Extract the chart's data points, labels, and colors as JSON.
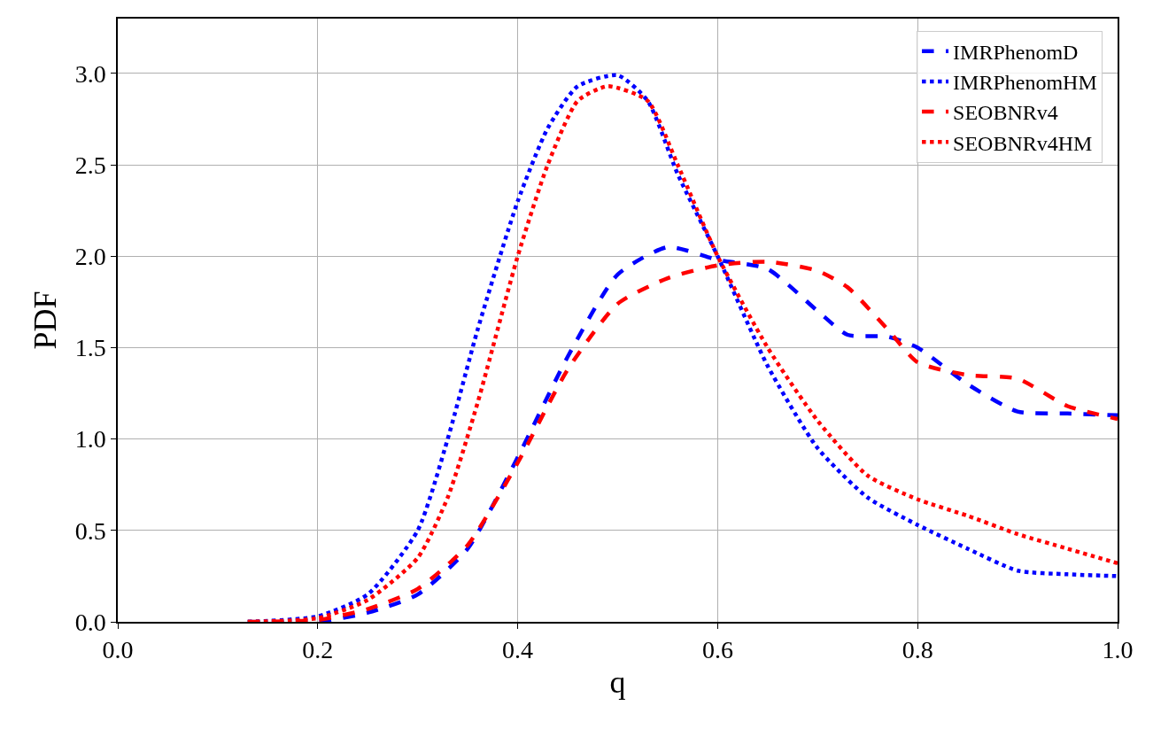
{
  "chart_data": {
    "type": "line",
    "xlabel": "q",
    "ylabel": "PDF",
    "xlim": [
      0.0,
      1.0
    ],
    "xticks": [
      {
        "value": 0,
        "label": "0.0"
      },
      0.2,
      0.4,
      0.6,
      0.8,
      {
        "value": 1,
        "label": "1.0"
      }
    ],
    "ylim": [
      0.0,
      3.3
    ],
    "yticks": [
      {
        "value": 0,
        "label": "0.0"
      },
      0.5,
      {
        "value": 1,
        "label": "1.0"
      },
      1.5,
      {
        "value": 2,
        "label": "2.0"
      },
      2.5,
      {
        "value": 3,
        "label": "3.0"
      }
    ],
    "grid": true,
    "legend": "top right",
    "series": [
      {
        "name": "IMRPhenomD",
        "color": "#0000ff",
        "line_style": "dashed",
        "x": [
          0.13,
          0.2,
          0.25,
          0.3,
          0.35,
          0.4,
          0.45,
          0.5,
          0.55,
          0.6,
          0.65,
          0.7,
          0.73,
          0.77,
          0.8,
          0.85,
          0.9,
          0.95,
          1.0
        ],
        "values": [
          0.0,
          0.0,
          0.05,
          0.15,
          0.4,
          0.9,
          1.45,
          1.9,
          2.05,
          1.98,
          1.93,
          1.7,
          1.57,
          1.56,
          1.5,
          1.3,
          1.15,
          1.14,
          1.13
        ]
      },
      {
        "name": "IMRPhenomHM",
        "color": "#0000ff",
        "line_style": "dotted",
        "x": [
          0.13,
          0.2,
          0.25,
          0.3,
          0.33,
          0.36,
          0.4,
          0.43,
          0.46,
          0.5,
          0.53,
          0.56,
          0.6,
          0.65,
          0.7,
          0.75,
          0.8,
          0.85,
          0.9,
          0.95,
          1.0
        ],
        "values": [
          0.0,
          0.03,
          0.15,
          0.5,
          1.0,
          1.6,
          2.3,
          2.7,
          2.93,
          2.99,
          2.85,
          2.45,
          2.0,
          1.4,
          0.95,
          0.68,
          0.53,
          0.4,
          0.28,
          0.26,
          0.25
        ]
      },
      {
        "name": "SEOBNRv4",
        "color": "#ff0000",
        "line_style": "dashed",
        "x": [
          0.13,
          0.2,
          0.25,
          0.3,
          0.35,
          0.4,
          0.45,
          0.5,
          0.55,
          0.6,
          0.65,
          0.7,
          0.73,
          0.77,
          0.8,
          0.85,
          0.9,
          0.95,
          1.0
        ],
        "values": [
          0.0,
          0.01,
          0.07,
          0.18,
          0.42,
          0.87,
          1.38,
          1.74,
          1.88,
          1.95,
          1.97,
          1.92,
          1.83,
          1.6,
          1.42,
          1.35,
          1.33,
          1.18,
          1.11
        ]
      },
      {
        "name": "SEOBNRv4HM",
        "color": "#ff0000",
        "line_style": "dotted",
        "x": [
          0.13,
          0.2,
          0.25,
          0.3,
          0.33,
          0.36,
          0.4,
          0.43,
          0.46,
          0.49,
          0.53,
          0.56,
          0.6,
          0.65,
          0.7,
          0.75,
          0.8,
          0.85,
          0.9,
          0.95,
          1.0
        ],
        "values": [
          0.0,
          0.02,
          0.12,
          0.35,
          0.68,
          1.2,
          2.0,
          2.5,
          2.85,
          2.93,
          2.85,
          2.5,
          2.0,
          1.5,
          1.1,
          0.8,
          0.67,
          0.58,
          0.48,
          0.4,
          0.32
        ]
      }
    ]
  }
}
